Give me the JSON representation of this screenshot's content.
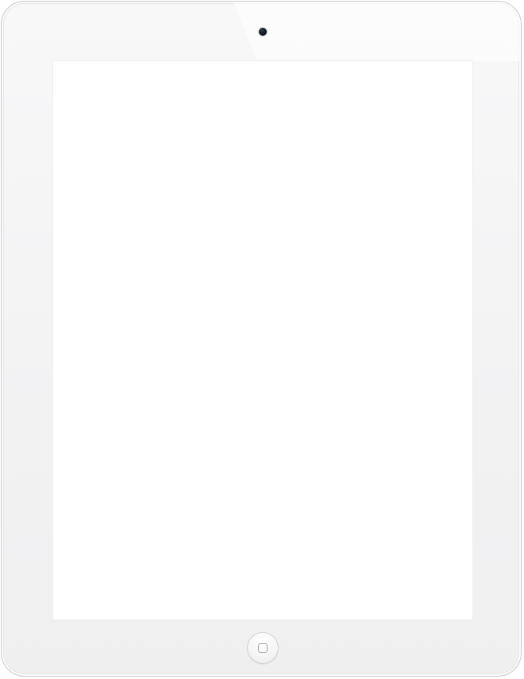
{
  "device": {
    "type": "tablet",
    "body_color": "#f3f3f4",
    "screen_color": "#ffffff",
    "camera_color": "#0e141c",
    "icons": {
      "camera": "camera-icon",
      "home": "home-square-icon"
    }
  }
}
